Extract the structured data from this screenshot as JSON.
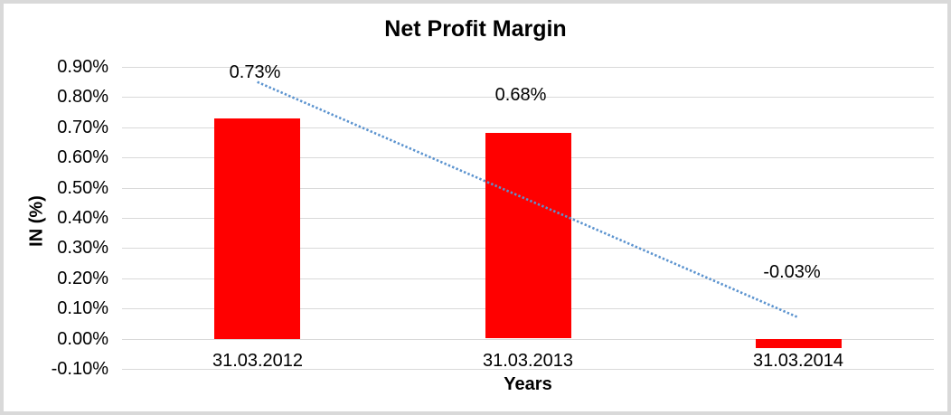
{
  "canvas": {
    "background": "#ffffff",
    "border_color": "#d9d9d9"
  },
  "chart_data": {
    "type": "bar",
    "title": "Net Profit Margin",
    "xlabel": "Years",
    "ylabel": "IN (%)",
    "categories": [
      "31.03.2012",
      "31.03.2013",
      "31.03.2014"
    ],
    "values": [
      0.73,
      0.68,
      -0.03
    ],
    "data_labels": [
      "0.73%",
      "0.68%",
      "-0.03%"
    ],
    "y_ticks": [
      "0.90%",
      "0.80%",
      "0.70%",
      "0.60%",
      "0.50%",
      "0.40%",
      "0.30%",
      "0.20%",
      "0.10%",
      "0.00%",
      "-0.10%"
    ],
    "y_tick_values": [
      0.9,
      0.8,
      0.7,
      0.6,
      0.5,
      0.4,
      0.3,
      0.2,
      0.1,
      0.0,
      -0.1
    ],
    "ylim": [
      -0.1,
      0.9
    ],
    "grid": true,
    "legend": "none",
    "bar_color": "#ff0000",
    "gridline_color": "#d9d9d9",
    "trendline": {
      "style": "dotted",
      "color": "#5b93cf",
      "start_value": 0.85,
      "end_value": 0.07
    }
  }
}
